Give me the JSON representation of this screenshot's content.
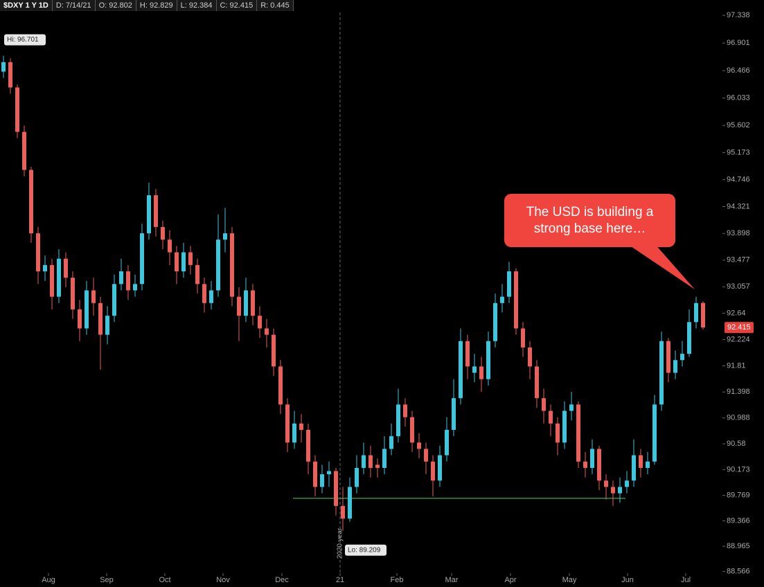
{
  "header": {
    "symbol": "$DXY 1 Y 1D",
    "date": "D: 7/14/21",
    "open": "O: 92.802",
    "high": "H: 92.829",
    "low": "L: 92.384",
    "close": "C: 92.415",
    "range": "R: 0.445"
  },
  "chart_data": {
    "type": "candlestick",
    "up_color": "#3fc6dc",
    "down_color": "#e9605c",
    "xlim": [
      -0.5,
      103.5
    ],
    "ylim": [
      88.54,
      97.58
    ],
    "yticks": [
      97.338,
      96.901,
      96.466,
      96.033,
      95.602,
      95.173,
      94.746,
      94.321,
      93.898,
      93.477,
      93.057,
      92.64,
      92.224,
      91.81,
      91.398,
      90.988,
      90.58,
      90.173,
      89.769,
      89.366,
      88.965,
      88.566
    ],
    "xticks": [
      {
        "value": 6.5,
        "label": "Aug"
      },
      {
        "value": 14.9,
        "label": "Sep"
      },
      {
        "value": 23.3,
        "label": "Oct"
      },
      {
        "value": 31.7,
        "label": "Nov"
      },
      {
        "value": 40.2,
        "label": "Dec"
      },
      {
        "value": 48.6,
        "label": "21"
      },
      {
        "value": 56.8,
        "label": "Feb"
      },
      {
        "value": 64.7,
        "label": "Mar"
      },
      {
        "value": 73.2,
        "label": "Apr"
      },
      {
        "value": 81.7,
        "label": "May"
      },
      {
        "value": 90.1,
        "label": "Jun"
      },
      {
        "value": 98.5,
        "label": "Jul"
      }
    ],
    "open": [
      96.45,
      96.6,
      96.2,
      95.5,
      94.9,
      93.9,
      93.3,
      93.4,
      92.9,
      93.5,
      93.2,
      92.7,
      92.4,
      93.0,
      92.8,
      92.3,
      92.6,
      93.1,
      93.3,
      93.0,
      93.1,
      93.9,
      94.5,
      94.0,
      93.8,
      93.6,
      93.3,
      93.6,
      93.4,
      93.1,
      92.8,
      93.0,
      93.8,
      93.9,
      92.9,
      92.6,
      93.0,
      92.6,
      92.4,
      92.3,
      91.8,
      91.2,
      90.6,
      90.9,
      90.8,
      90.3,
      89.9,
      90.1,
      90.15,
      89.6,
      89.4,
      89.9,
      90.2,
      90.4,
      90.25,
      90.2,
      90.5,
      90.7,
      91.2,
      91.0,
      90.6,
      90.5,
      90.3,
      90.0,
      90.4,
      90.8,
      91.3,
      92.2,
      91.7,
      91.8,
      91.6,
      92.2,
      92.8,
      92.9,
      93.3,
      92.4,
      92.1,
      91.8,
      91.3,
      91.1,
      90.9,
      90.6,
      91.1,
      91.2,
      90.3,
      90.2,
      90.5,
      90.0,
      89.9,
      89.8,
      89.9,
      90.0,
      90.4,
      90.2,
      90.3,
      91.2,
      92.2,
      91.7,
      91.9,
      92.0,
      92.5,
      92.802
    ],
    "high": [
      96.701,
      96.66,
      96.25,
      95.6,
      94.95,
      94.0,
      93.55,
      93.5,
      93.65,
      93.6,
      93.3,
      92.85,
      93.15,
      93.2,
      92.9,
      92.75,
      93.25,
      93.5,
      93.4,
      93.25,
      94.05,
      94.7,
      94.6,
      94.1,
      93.95,
      93.7,
      93.75,
      93.7,
      93.5,
      93.2,
      93.15,
      94.2,
      94.3,
      94.0,
      93.05,
      93.2,
      93.1,
      92.75,
      92.55,
      92.4,
      91.9,
      91.3,
      91.1,
      91.05,
      90.9,
      90.4,
      90.25,
      90.3,
      90.2,
      89.9,
      90.05,
      90.4,
      90.6,
      90.55,
      90.35,
      90.7,
      90.9,
      91.45,
      91.3,
      91.1,
      90.75,
      90.6,
      90.4,
      90.55,
      91.0,
      91.6,
      92.4,
      92.3,
      92.0,
      91.95,
      92.35,
      92.95,
      93.1,
      93.45,
      93.35,
      92.5,
      92.2,
      91.9,
      91.45,
      91.2,
      91.0,
      91.25,
      91.4,
      91.25,
      90.45,
      90.65,
      90.55,
      90.1,
      90.0,
      90.05,
      90.15,
      90.65,
      90.5,
      90.45,
      91.35,
      92.35,
      92.25,
      92.05,
      92.2,
      92.7,
      92.9,
      92.829
    ],
    "low": [
      96.35,
      96.1,
      95.4,
      94.8,
      93.75,
      93.1,
      93.15,
      92.7,
      92.8,
      93.05,
      92.55,
      92.2,
      92.3,
      92.6,
      91.75,
      92.15,
      92.5,
      93.0,
      92.85,
      92.9,
      93.0,
      93.8,
      93.85,
      93.65,
      93.4,
      93.1,
      93.2,
      93.25,
      92.95,
      92.65,
      92.7,
      92.9,
      93.6,
      92.75,
      92.2,
      92.5,
      92.45,
      92.25,
      92.1,
      91.65,
      91.05,
      90.45,
      90.5,
      90.6,
      90.1,
      89.75,
      89.8,
      89.9,
      89.45,
      89.209,
      89.35,
      89.8,
      90.1,
      90.05,
      90.05,
      90.1,
      90.4,
      90.6,
      90.85,
      90.45,
      90.35,
      90.1,
      89.75,
      89.9,
      90.3,
      90.7,
      91.2,
      91.6,
      91.55,
      91.4,
      91.5,
      92.1,
      92.65,
      92.8,
      92.3,
      91.95,
      91.6,
      91.15,
      90.9,
      90.7,
      90.4,
      90.5,
      90.95,
      90.2,
      90.05,
      90.1,
      89.85,
      89.7,
      89.6,
      89.65,
      89.8,
      89.9,
      90.05,
      90.1,
      90.25,
      91.1,
      91.55,
      91.6,
      91.8,
      91.95,
      92.4,
      92.384
    ],
    "close": [
      96.6,
      96.2,
      95.5,
      94.9,
      93.9,
      93.3,
      93.4,
      92.9,
      93.5,
      93.2,
      92.7,
      92.4,
      93.0,
      92.8,
      92.3,
      92.6,
      93.1,
      93.3,
      93.0,
      93.1,
      93.9,
      94.5,
      94.0,
      93.8,
      93.6,
      93.3,
      93.6,
      93.4,
      93.1,
      92.8,
      93.0,
      93.8,
      93.9,
      92.9,
      92.6,
      93.0,
      92.6,
      92.4,
      92.3,
      91.8,
      91.2,
      90.6,
      90.9,
      90.8,
      90.3,
      89.9,
      90.1,
      90.15,
      89.6,
      89.4,
      89.9,
      90.2,
      90.4,
      90.2,
      90.2,
      90.5,
      90.7,
      91.2,
      91.0,
      90.6,
      90.5,
      90.3,
      90.0,
      90.4,
      90.8,
      91.3,
      92.2,
      91.8,
      91.8,
      91.6,
      92.2,
      92.8,
      92.9,
      93.3,
      92.4,
      92.1,
      91.8,
      91.3,
      91.1,
      90.9,
      90.6,
      91.1,
      91.2,
      90.3,
      90.2,
      90.5,
      90.0,
      89.9,
      89.8,
      89.9,
      90.0,
      90.4,
      90.2,
      90.3,
      91.2,
      92.2,
      91.7,
      91.9,
      92.0,
      92.5,
      92.8,
      92.415
    ],
    "hi_label": "Hi: 96.701",
    "hi_index": 0,
    "hi_value": 96.701,
    "lo_label": "Lo: 89.209",
    "lo_index": 49,
    "lo_value": 89.209,
    "year_line": 48.6,
    "year_label": "2020 year",
    "support": {
      "value": 89.72,
      "from": 41.8,
      "to": 89.8,
      "color": "#2f8f3f"
    },
    "last_price": 92.415,
    "annotation": "The USD is building a strong base here…"
  }
}
